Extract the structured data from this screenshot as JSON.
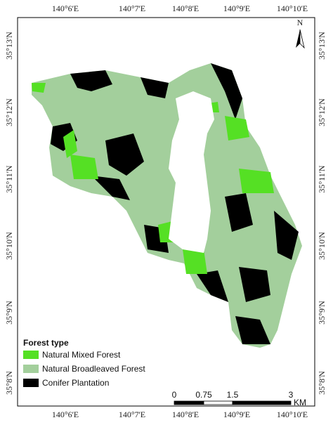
{
  "map": {
    "x_labels": [
      "140°6'E",
      "140°7'E",
      "140°8'E",
      "140°9'E",
      "140°10'E"
    ],
    "y_labels": [
      "35°13'N",
      "35°12'N",
      "35°11'N",
      "35°10'N",
      "35°9'N",
      "35°8'N"
    ],
    "north": "N",
    "legend": {
      "title": "Forest type",
      "items": [
        {
          "label": "Natural Mixed Forest",
          "color": "#55e024"
        },
        {
          "label": "Natural Broadleaved Forest",
          "color": "#a3cf9c"
        },
        {
          "label": "Conifer Plantation",
          "color": "#000000"
        }
      ]
    },
    "scale": {
      "labels": [
        "0",
        "0.75",
        "1.5",
        "3"
      ],
      "unit": "KM"
    }
  }
}
